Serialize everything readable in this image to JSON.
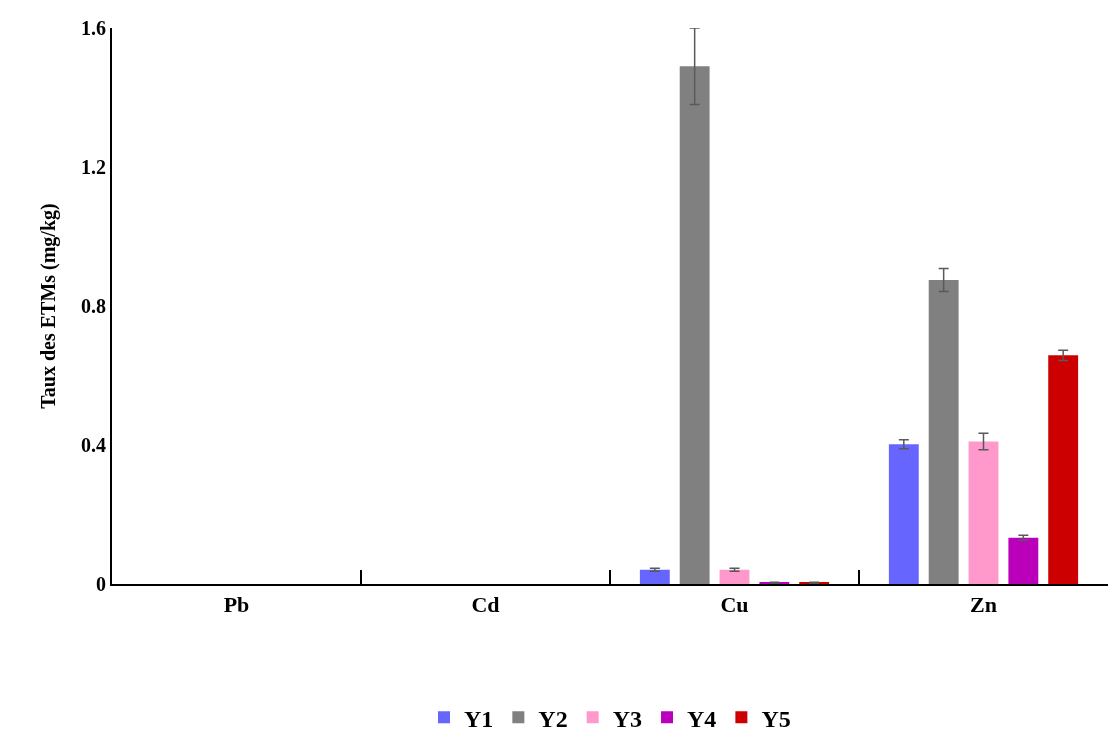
{
  "chart_data": {
    "type": "bar",
    "ylabel": "Taux des ETMs (mg/kg)",
    "categories": [
      "Pb",
      "Cd",
      "Cu",
      "Zn"
    ],
    "series": [
      {
        "name": "Y1",
        "color": "#6666ff",
        "values": [
          null,
          null,
          0.041,
          0.402
        ],
        "errors": [
          null,
          null,
          0.004,
          0.013
        ]
      },
      {
        "name": "Y2",
        "color": "#808080",
        "values": [
          null,
          null,
          1.49,
          0.875
        ],
        "errors": [
          null,
          null,
          0.11,
          0.033
        ]
      },
      {
        "name": "Y3",
        "color": "#ff99cc",
        "values": [
          null,
          null,
          0.041,
          0.41
        ],
        "errors": [
          null,
          null,
          0.004,
          0.024
        ]
      },
      {
        "name": "Y4",
        "color": "#bb00bb",
        "values": [
          null,
          null,
          0.003,
          0.133
        ],
        "errors": [
          null,
          null,
          0.002,
          0.007
        ]
      },
      {
        "name": "Y5",
        "color": "#cc0000",
        "values": [
          null,
          null,
          0.003,
          0.658
        ],
        "errors": [
          null,
          null,
          0.002,
          0.015
        ]
      }
    ],
    "ylim": [
      0,
      1.6
    ],
    "yticks": [
      0,
      0.4,
      0.8,
      1.2,
      1.6
    ],
    "grid": false,
    "legend": "bottom"
  }
}
